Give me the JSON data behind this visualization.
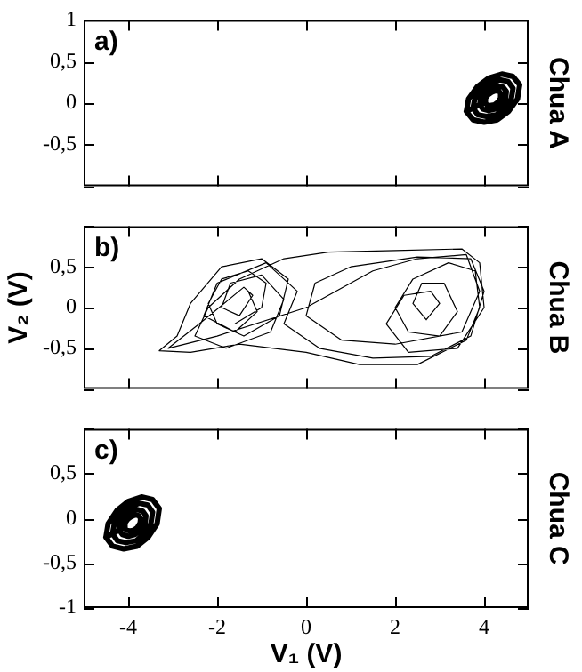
{
  "chart_data": [
    {
      "type": "line",
      "title": "Chua A",
      "annotations": [
        "a)"
      ],
      "color": "#000000",
      "xlim": [
        -5,
        5
      ],
      "xticks": [
        -4,
        -2,
        0,
        2,
        4
      ],
      "ylim": [
        -1,
        1
      ],
      "yticks": [
        1,
        {
          "value": 0.5,
          "label": "0,5"
        },
        0,
        {
          "value": -0.5,
          "label": "-0,5"
        },
        {
          "value": -1,
          "label": null
        }
      ],
      "tick_labels": "y",
      "x": [
        3.6,
        3.65,
        3.85,
        4.1,
        4.4,
        4.65,
        4.8,
        4.75,
        4.55,
        4.3,
        4.0,
        3.75,
        3.6,
        3.75,
        3.79,
        3.94,
        4.12,
        4.35,
        4.54,
        4.65,
        4.61,
        4.46,
        4.28,
        4.05,
        3.86,
        3.75,
        3.9,
        3.92,
        4.02,
        4.15,
        4.3,
        4.43,
        4.5,
        4.48,
        4.38,
        4.25,
        4.1,
        3.97,
        3.9,
        4.02,
        4.03,
        4.09,
        4.17,
        4.26,
        4.34,
        4.38,
        4.37,
        4.31,
        4.23,
        4.14,
        4.06,
        4.02
      ],
      "values": [
        -0.1,
        0.05,
        0.2,
        0.3,
        0.35,
        0.32,
        0.22,
        0.05,
        -0.1,
        -0.2,
        -0.23,
        -0.2,
        -0.1,
        -0.06,
        0.05,
        0.16,
        0.24,
        0.28,
        0.26,
        0.18,
        0.05,
        -0.06,
        -0.14,
        -0.16,
        -0.14,
        -0.06,
        -0.02,
        0.05,
        0.13,
        0.18,
        0.21,
        0.19,
        0.14,
        0.05,
        -0.02,
        -0.07,
        -0.09,
        -0.07,
        -0.02,
        0.01,
        0.06,
        0.1,
        0.13,
        0.15,
        0.14,
        0.11,
        0.06,
        0.01,
        -0.02,
        -0.03,
        -0.02,
        0.01
      ]
    },
    {
      "type": "line",
      "title": "Chua B",
      "ylabel": "V₂ (V)",
      "annotations": [
        "b)"
      ],
      "color": "#000000",
      "xlim": [
        -5,
        5
      ],
      "xticks": [
        -4,
        -2,
        0,
        2,
        4
      ],
      "ylim": [
        -1,
        1
      ],
      "yticks": [
        {
          "value": 1,
          "label": null
        },
        {
          "value": 0.5,
          "label": "0,5"
        },
        0,
        {
          "value": -0.5,
          "label": "-0,5"
        },
        {
          "value": -1,
          "label": null
        }
      ],
      "tick_labels": "y",
      "x": [
        -1.6,
        -1.0,
        -0.9,
        -1.3,
        -1.9,
        -2.2,
        -2.0,
        -1.4,
        -0.6,
        -0.4,
        -1.0,
        -1.9,
        -2.6,
        -2.9,
        -3.3,
        -2.6,
        -1.5,
        0,
        1.2,
        2.5,
        3.6,
        3.9,
        3.8,
        3.2,
        2.4,
        2.0,
        2.3,
        3.0,
        3.4,
        3.1,
        2.6,
        2.4,
        2.7,
        3.0,
        2.8,
        2.2,
        1.8,
        2.3,
        3.4,
        4.0,
        3.9,
        3.5,
        2.0,
        0.5,
        -0.5,
        -1.5,
        -2.2,
        -2.5,
        -1.8,
        -0.8,
        -0.5,
        -1.0,
        -1.7,
        -1.9,
        -1.5,
        -1.2,
        -1.4,
        -2.4,
        -3.1,
        -2.0,
        0.0,
        1.5,
        2.5,
        3.6,
        3.9,
        3.5,
        2.0,
        0.8,
        0.0,
        0.2,
        1.0,
        2.5,
        3.7,
        4.0,
        3.7,
        2.8,
        1.5,
        0.3,
        -0.5,
        -0.2,
        -0.9,
        -2.0,
        -2.3,
        -1.6,
        -1.1,
        -1.3
      ],
      "values": [
        -0.2,
        0.0,
        0.3,
        0.45,
        0.35,
        0.05,
        -0.2,
        -0.35,
        -0.1,
        0.35,
        0.6,
        0.5,
        0.05,
        -0.35,
        -0.53,
        -0.55,
        -0.45,
        -0.55,
        -0.7,
        -0.7,
        -0.4,
        0.0,
        0.45,
        0.55,
        0.35,
        0.0,
        -0.3,
        -0.35,
        -0.05,
        0.3,
        0.3,
        0.05,
        -0.15,
        0.05,
        0.2,
        0.15,
        -0.2,
        -0.55,
        -0.5,
        0.0,
        0.55,
        0.72,
        0.7,
        0.68,
        0.6,
        0.35,
        0.0,
        -0.35,
        -0.5,
        -0.3,
        0.1,
        0.4,
        0.3,
        0.0,
        -0.1,
        0.15,
        0.25,
        -0.2,
        -0.5,
        -0.35,
        0.0,
        0.45,
        0.6,
        0.65,
        0.2,
        -0.3,
        -0.45,
        -0.4,
        -0.1,
        0.3,
        0.5,
        0.62,
        0.6,
        0.2,
        -0.35,
        -0.6,
        -0.62,
        -0.5,
        -0.2,
        0.2,
        0.55,
        0.3,
        -0.1,
        -0.3,
        -0.05,
        0.2
      ]
    },
    {
      "type": "line",
      "title": "Chua C",
      "xlabel": "V₁ (V)",
      "annotations": [
        "c)"
      ],
      "color": "#000000",
      "xlim": [
        -5,
        5
      ],
      "xticks": [
        -4,
        -2,
        0,
        2,
        4
      ],
      "ylim": [
        -1,
        1
      ],
      "yticks": [
        {
          "value": 1,
          "label": null
        },
        {
          "value": 0.5,
          "label": "0,5"
        },
        0,
        {
          "value": -0.5,
          "label": "-0,5"
        },
        -1
      ],
      "x": [
        -4.5,
        -4.45,
        -4.25,
        -4.0,
        -3.7,
        -3.45,
        -3.3,
        -3.35,
        -3.55,
        -3.8,
        -4.1,
        -4.35,
        -4.5,
        -4.35,
        -4.31,
        -4.16,
        -3.98,
        -3.75,
        -3.56,
        -3.45,
        -3.49,
        -3.64,
        -3.82,
        -4.05,
        -4.24,
        -4.35,
        -4.2,
        -4.18,
        -4.08,
        -3.95,
        -3.8,
        -3.67,
        -3.6,
        -3.62,
        -3.72,
        -3.85,
        -4.0,
        -4.13,
        -4.2,
        -4.08,
        -4.07,
        -4.01,
        -3.93,
        -3.84,
        -3.76,
        -3.72,
        -3.73,
        -3.79,
        -3.87,
        -3.96,
        -4.04,
        -4.08
      ],
      "values": [
        -0.21,
        -0.06,
        0.09,
        0.19,
        0.24,
        0.21,
        0.11,
        -0.06,
        -0.21,
        -0.31,
        -0.34,
        -0.31,
        -0.21,
        -0.17,
        -0.06,
        0.05,
        0.13,
        0.17,
        0.15,
        0.07,
        -0.06,
        -0.17,
        -0.25,
        -0.27,
        -0.25,
        -0.17,
        -0.13,
        -0.06,
        0.02,
        0.07,
        0.1,
        0.08,
        0.03,
        -0.06,
        -0.13,
        -0.18,
        -0.2,
        -0.18,
        -0.13,
        -0.1,
        -0.05,
        -0.01,
        0.02,
        0.04,
        0.03,
        0.0,
        -0.05,
        -0.1,
        -0.13,
        -0.14,
        -0.13,
        -0.1
      ]
    }
  ]
}
